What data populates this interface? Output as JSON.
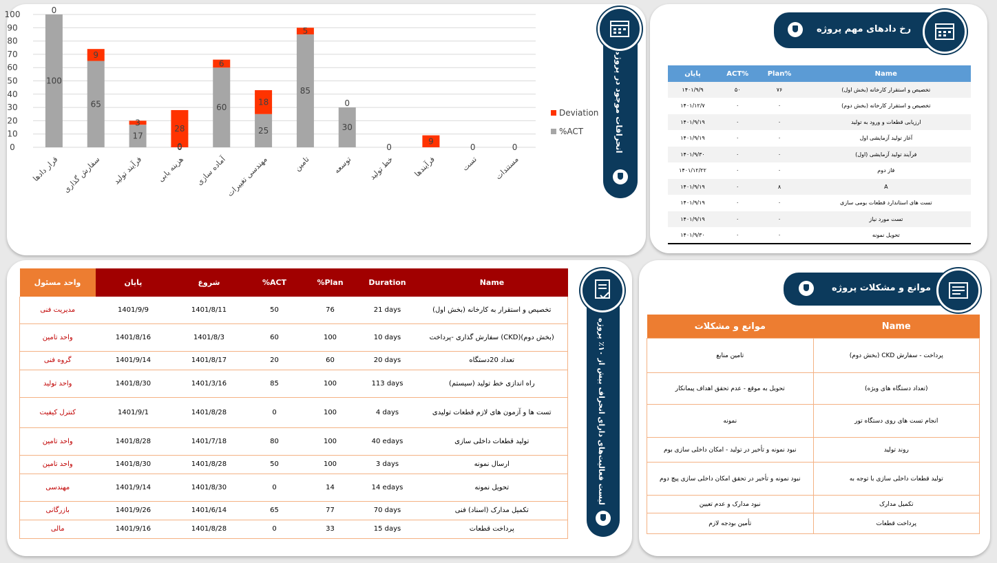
{
  "chart_data": {
    "type": "bar",
    "stacked": true,
    "categories": [
      "قرار دادها",
      "سفارش گذاری",
      "فرآیند تولید",
      "هزینه یابی",
      "آماده سازی",
      "مهندسی تغییرات",
      "تامین",
      "توسعه",
      "خط تولید",
      "فرآیندها",
      "تست",
      "مستندات"
    ],
    "series": [
      {
        "name": "%ACT",
        "color": "#a6a6a6",
        "values": [
          100,
          65,
          17,
          0,
          60,
          25,
          85,
          30,
          0,
          0,
          0,
          0
        ]
      },
      {
        "name": "Deviation",
        "color": "#ff3300",
        "values": [
          0,
          9,
          3,
          28,
          6,
          18,
          5,
          0,
          0,
          9,
          0,
          0
        ]
      }
    ],
    "labels_act": [
      "100",
      "65",
      "17",
      "0",
      "60",
      "25",
      "85",
      "30",
      "",
      "",
      "",
      ""
    ],
    "labels_dev": [
      "0",
      "9",
      "3",
      "28",
      "6",
      "18",
      "5",
      "0",
      "0",
      "9",
      "0",
      "0"
    ],
    "ylim": [
      0,
      100
    ],
    "yticks": [
      "0",
      "10",
      "20",
      "30",
      "40",
      "50",
      "60",
      "70",
      "80",
      "90",
      "100"
    ],
    "legend": "right",
    "grid": true
  },
  "panel1": {
    "title": "انحرافات موجود در پروژه"
  },
  "panel2": {
    "title": "رخ دادهای مهم پروژه",
    "columns": [
      "پایان",
      "ACT%",
      "Plan%",
      "Name"
    ],
    "rows": [
      [
        "۱۴۰۱/۹/۹",
        "۵۰",
        "۷۶",
        "(بخش اول) تخصیص و استقرار کارخانه"
      ],
      [
        "۱۴۰۱/۱۲/۷",
        "۰",
        "۰",
        "(بخش دوم) تخصیص و استقرار کارخانه"
      ],
      [
        "۱۴۰۱/۹/۱۹",
        "۰",
        "۰",
        "ارزیابی قطعات و ورود به تولید"
      ],
      [
        "۱۴۰۱/۹/۱۹",
        "۰",
        "۰",
        "آغاز تولید آزمایشی اول"
      ],
      [
        "۱۴۰۱/۹/۳۰",
        "۰",
        "۰",
        "فرآیند تولید آزمایشی (اول)"
      ],
      [
        "۱۴۰۱/۱۲/۲۲",
        "۰",
        "۰",
        "فاز دوم"
      ],
      [
        "۱۴۰۱/۹/۱۹",
        "۰",
        "۸",
        "A"
      ],
      [
        "۱۴۰۱/۹/۱۹",
        "۰",
        "۰",
        "تست های استاندارد قطعات بومی سازی"
      ],
      [
        "۱۴۰۱/۹/۱۹",
        "۰",
        "۰",
        "تست مورد نیاز"
      ],
      [
        "۱۴۰۱/۹/۳۰",
        "۰",
        "۰",
        "تحویل نمونه"
      ]
    ]
  },
  "panel3": {
    "title": "لیست فعالیت‌های دارای انحراف بیش از ۱۰٪ پروژه",
    "columns": [
      "واحد مسئول",
      "پایان",
      "شروع",
      "%ACT",
      "%Plan",
      "Duration",
      "Name"
    ],
    "rows": [
      [
        "مدیریت فنی",
        "1401/9/9",
        "1401/8/11",
        "50",
        "76",
        "21 days",
        "تخصیص و استقرار به کارخانه (بخش اول)"
      ],
      [
        "واحد تامین",
        "1401/8/16",
        "1401/8/3",
        "60",
        "100",
        "10 days",
        "سفارش گذاری -پرداخت (CKD)(بخش دوم)"
      ],
      [
        "گروه فنی",
        "1401/9/14",
        "1401/8/17",
        "20",
        "60",
        "20 days",
        "تعداد 20دستگاه"
      ],
      [
        "واحد تولید",
        "1401/8/30",
        "1401/3/16",
        "85",
        "100",
        "113 days",
        "(سیستم) راه اندازی خط تولید"
      ],
      [
        "کنترل کیفیت",
        "1401/9/1",
        "1401/8/28",
        "0",
        "100",
        "4 days",
        "تست ها و آزمون های لازم قطعات تولیدی"
      ],
      [
        "واحد تامین",
        "1401/8/28",
        "1401/7/18",
        "80",
        "100",
        "40 edays",
        "تولید قطعات داخلی سازی"
      ],
      [
        "واحد تامین",
        "1401/8/30",
        "1401/8/28",
        "50",
        "100",
        "3 days",
        "ارسال نمونه"
      ],
      [
        "مهندسی",
        "1401/9/14",
        "1401/8/30",
        "0",
        "14",
        "14 edays",
        "تحویل نمونه"
      ],
      [
        "بازرگانی",
        "1401/9/26",
        "1401/6/14",
        "65",
        "77",
        "70 days",
        "تکمیل مدارک (اسناد) فنی"
      ],
      [
        "مالی",
        "1401/9/16",
        "1401/8/28",
        "0",
        "33",
        "15 days",
        "پرداخت قطعات"
      ]
    ]
  },
  "panel4": {
    "title": "موانع و مشکلات پروژه",
    "columns": [
      "موانع و مشکلات",
      "Name"
    ],
    "rows": [
      [
        "تامین منابع",
        "(بخش دوم) CKD پرداخت - سفارش"
      ],
      [
        "تحویل به موقع - عدم تحقق اهداف پیمانکار",
        "(تعداد دستگاه های ویژه)"
      ],
      [
        "نمونه",
        "انجام تست های روی دستگاه تور"
      ],
      [
        "نبود نمونه و تأخیر در تولید - امکان داخلی سازی بوم",
        "روند تولید"
      ],
      [
        "نبود نمونه و تأخیر در تحقق امکان داخلی سازی پیچ دوم",
        "تولید قطعات داخلی سازی با توجه به"
      ],
      [
        "نبود مدارک و عدم تعیین",
        "تکمیل مدارک"
      ],
      [
        "تأمین بودجه لازم",
        "پرداخت قطعات"
      ]
    ]
  }
}
